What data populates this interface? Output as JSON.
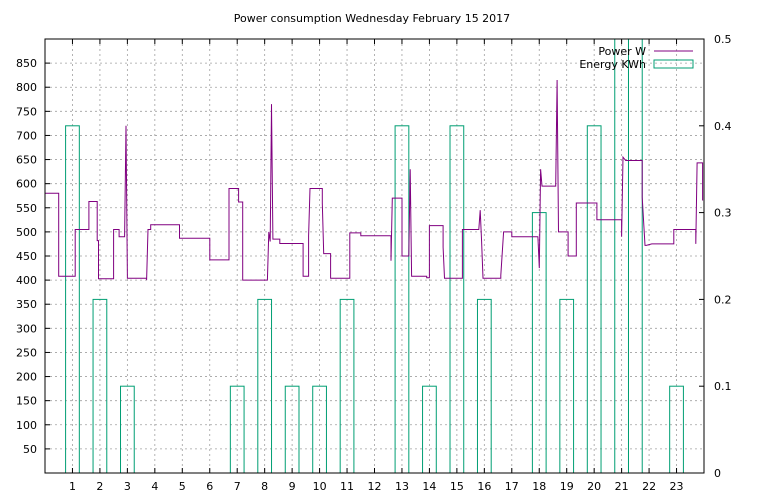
{
  "chart_data": {
    "type": "line",
    "title": "Power consumption Wednesday February 15 2017",
    "xlabel": "",
    "ylabel": "",
    "xlim": [
      0,
      24
    ],
    "ylim": [
      0,
      900
    ],
    "y2lim": [
      0,
      0.5
    ],
    "grid": true,
    "legend_position": "top-right",
    "x_ticks": [
      "1",
      "2",
      "3",
      "4",
      "5",
      "6",
      "7",
      "8",
      "9",
      "10",
      "11",
      "12",
      "13",
      "14",
      "15",
      "16",
      "17",
      "18",
      "19",
      "20",
      "21",
      "22",
      "23"
    ],
    "y_ticks": [
      "50",
      "100",
      "150",
      "200",
      "250",
      "300",
      "350",
      "400",
      "450",
      "500",
      "550",
      "600",
      "650",
      "700",
      "750",
      "800",
      "850"
    ],
    "y2_ticks": [
      "0",
      "0.1",
      "0.2",
      "0.3",
      "0.4",
      "0.5"
    ],
    "colors": {
      "power": "#800080",
      "energy": "#009e73",
      "grid": "#a0a0a0"
    },
    "series": [
      {
        "name": "Power W",
        "axis": "left",
        "style": "step-line",
        "points": [
          [
            0.0,
            580
          ],
          [
            0.5,
            580
          ],
          [
            0.5,
            408
          ],
          [
            1.1,
            408
          ],
          [
            1.1,
            505
          ],
          [
            1.6,
            505
          ],
          [
            1.6,
            563
          ],
          [
            1.9,
            563
          ],
          [
            1.9,
            482
          ],
          [
            1.95,
            482
          ],
          [
            1.95,
            403
          ],
          [
            2.5,
            403
          ],
          [
            2.5,
            505
          ],
          [
            2.7,
            505
          ],
          [
            2.7,
            490
          ],
          [
            2.9,
            490
          ],
          [
            2.95,
            720
          ],
          [
            3.0,
            404
          ],
          [
            3.7,
            404
          ],
          [
            3.7,
            400
          ],
          [
            3.75,
            505
          ],
          [
            3.85,
            505
          ],
          [
            3.85,
            515
          ],
          [
            4.9,
            515
          ],
          [
            4.9,
            487
          ],
          [
            6.0,
            487
          ],
          [
            6.0,
            442
          ],
          [
            6.7,
            442
          ],
          [
            6.7,
            590
          ],
          [
            7.05,
            590
          ],
          [
            7.05,
            562
          ],
          [
            7.2,
            562
          ],
          [
            7.2,
            400
          ],
          [
            8.1,
            400
          ],
          [
            8.15,
            500
          ],
          [
            8.2,
            480
          ],
          [
            8.25,
            765
          ],
          [
            8.3,
            485
          ],
          [
            8.55,
            485
          ],
          [
            8.55,
            476
          ],
          [
            9.4,
            476
          ],
          [
            9.4,
            408
          ],
          [
            9.6,
            408
          ],
          [
            9.6,
            492
          ],
          [
            9.65,
            590
          ],
          [
            10.1,
            590
          ],
          [
            10.1,
            560
          ],
          [
            10.15,
            455
          ],
          [
            10.4,
            455
          ],
          [
            10.4,
            404
          ],
          [
            11.1,
            404
          ],
          [
            11.1,
            498
          ],
          [
            11.5,
            498
          ],
          [
            11.5,
            492
          ],
          [
            12.6,
            492
          ],
          [
            12.6,
            440
          ],
          [
            12.65,
            570
          ],
          [
            13.0,
            570
          ],
          [
            13.0,
            450
          ],
          [
            13.25,
            450
          ],
          [
            13.3,
            630
          ],
          [
            13.35,
            408
          ],
          [
            13.9,
            408
          ],
          [
            13.9,
            405
          ],
          [
            14.0,
            405
          ],
          [
            14.0,
            513
          ],
          [
            14.5,
            513
          ],
          [
            14.5,
            468
          ],
          [
            14.55,
            404
          ],
          [
            15.2,
            404
          ],
          [
            15.2,
            505
          ],
          [
            15.8,
            505
          ],
          [
            15.85,
            545
          ],
          [
            15.9,
            480
          ],
          [
            15.95,
            404
          ],
          [
            16.6,
            404
          ],
          [
            16.6,
            410
          ],
          [
            16.7,
            500
          ],
          [
            17.0,
            500
          ],
          [
            17.0,
            490
          ],
          [
            17.95,
            490
          ],
          [
            18.0,
            425
          ],
          [
            18.05,
            630
          ],
          [
            18.1,
            595
          ],
          [
            18.6,
            595
          ],
          [
            18.65,
            815
          ],
          [
            18.7,
            500
          ],
          [
            19.05,
            500
          ],
          [
            19.05,
            450
          ],
          [
            19.35,
            450
          ],
          [
            19.35,
            560
          ],
          [
            20.1,
            560
          ],
          [
            20.1,
            525
          ],
          [
            21.0,
            525
          ],
          [
            21.0,
            490
          ],
          [
            21.05,
            655
          ],
          [
            21.15,
            648
          ],
          [
            21.75,
            648
          ],
          [
            21.75,
            572
          ],
          [
            21.85,
            472
          ],
          [
            21.9,
            472
          ],
          [
            22.1,
            475
          ],
          [
            22.9,
            475
          ],
          [
            22.9,
            505
          ],
          [
            23.7,
            505
          ],
          [
            23.7,
            475
          ],
          [
            23.75,
            643
          ],
          [
            23.95,
            643
          ],
          [
            23.95,
            565
          ]
        ]
      },
      {
        "name": "Energy KWh",
        "axis": "right",
        "style": "bars",
        "bars": [
          {
            "x": 1,
            "value": 0.4
          },
          {
            "x": 2,
            "value": 0.2
          },
          {
            "x": 3,
            "value": 0.1
          },
          {
            "x": 7,
            "value": 0.1
          },
          {
            "x": 8,
            "value": 0.2
          },
          {
            "x": 9,
            "value": 0.1
          },
          {
            "x": 10,
            "value": 0.1
          },
          {
            "x": 11,
            "value": 0.2
          },
          {
            "x": 13,
            "value": 0.4
          },
          {
            "x": 14,
            "value": 0.1
          },
          {
            "x": 15,
            "value": 0.4
          },
          {
            "x": 16,
            "value": 0.2
          },
          {
            "x": 18,
            "value": 0.3
          },
          {
            "x": 19,
            "value": 0.2
          },
          {
            "x": 20,
            "value": 0.4
          },
          {
            "x": 21,
            "value": 0.5
          },
          {
            "x": 21.5,
            "value": 0.5
          },
          {
            "x": 23,
            "value": 0.1
          }
        ],
        "bar_width": 0.5
      }
    ]
  }
}
